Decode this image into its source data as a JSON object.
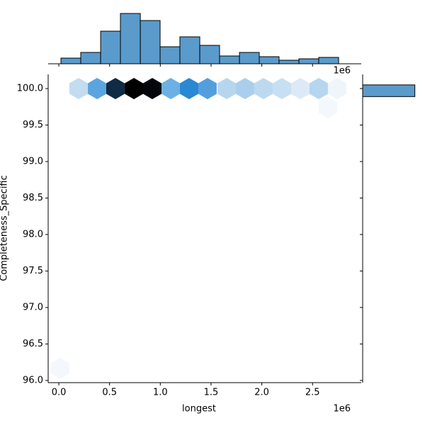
{
  "chart_data": {
    "type": "hexbin_joint",
    "x_label": "longest",
    "y_label": "Completeness_Specific",
    "x_offset_label": "1e6",
    "xlim": [
      -0.105,
      2.98
    ],
    "ylim": [
      95.97,
      100.194
    ],
    "xticks": [
      {
        "value": 0,
        "label": "0.0"
      },
      0.5,
      {
        "value": 1,
        "label": "1.0"
      },
      1.5,
      {
        "value": 2,
        "label": "2.0"
      },
      2.5
    ],
    "yticks": [
      {
        "value": 96,
        "label": "96.0"
      },
      96.5,
      {
        "value": 97,
        "label": "97.0"
      },
      97.5,
      {
        "value": 98,
        "label": "98.0"
      },
      98.5,
      {
        "value": 99,
        "label": "99.0"
      },
      99.5,
      {
        "value": 100,
        "label": "100.0"
      }
    ],
    "hexes": {
      "x": [
        0.195,
        0.377,
        0.558,
        0.74,
        0.921,
        1.103,
        1.284,
        1.465,
        1.654,
        1.835,
        2.017,
        2.198,
        2.38,
        2.561,
        2.742,
        2.652,
        0.014
      ],
      "y": [
        100,
        100,
        100,
        100,
        100,
        100,
        100,
        100,
        100,
        100,
        100,
        100,
        100,
        100,
        100,
        99.74,
        96.165
      ],
      "counts": [
        10,
        26,
        62,
        71,
        68,
        24,
        35,
        26,
        12,
        14,
        11,
        9,
        6,
        12,
        3,
        1,
        1
      ],
      "colors": [
        "#c3dcf0",
        "#5aa5df",
        "#0f2b45",
        "#000000",
        "#02070c",
        "#6cb0e4",
        "#2a88d4",
        "#539fdd",
        "#b7d6ee",
        "#a9cfed",
        "#bcd9ef",
        "#c6dff2",
        "#dde9f6",
        "#b6d5ee",
        "#eef5fb",
        "#f4f8fd",
        "#f4f8fd"
      ]
    },
    "top_hist": {
      "color": "#5a9bcc",
      "ylim": [
        0,
        75
      ],
      "bins": [
        0.021,
        0.216,
        0.412,
        0.607,
        0.803,
        0.998,
        1.193,
        1.389,
        1.584,
        1.78,
        1.975,
        2.17,
        2.366,
        2.561,
        2.757
      ],
      "counts": [
        8,
        16,
        46,
        71,
        61,
        24,
        38,
        26,
        11,
        16,
        10,
        5,
        7,
        9
      ]
    },
    "right_hist": {
      "color": "#5a9bcc",
      "xlim": [
        0,
        360
      ],
      "bins": [
        99.89,
        100.05
      ],
      "counts": [
        340
      ]
    }
  }
}
